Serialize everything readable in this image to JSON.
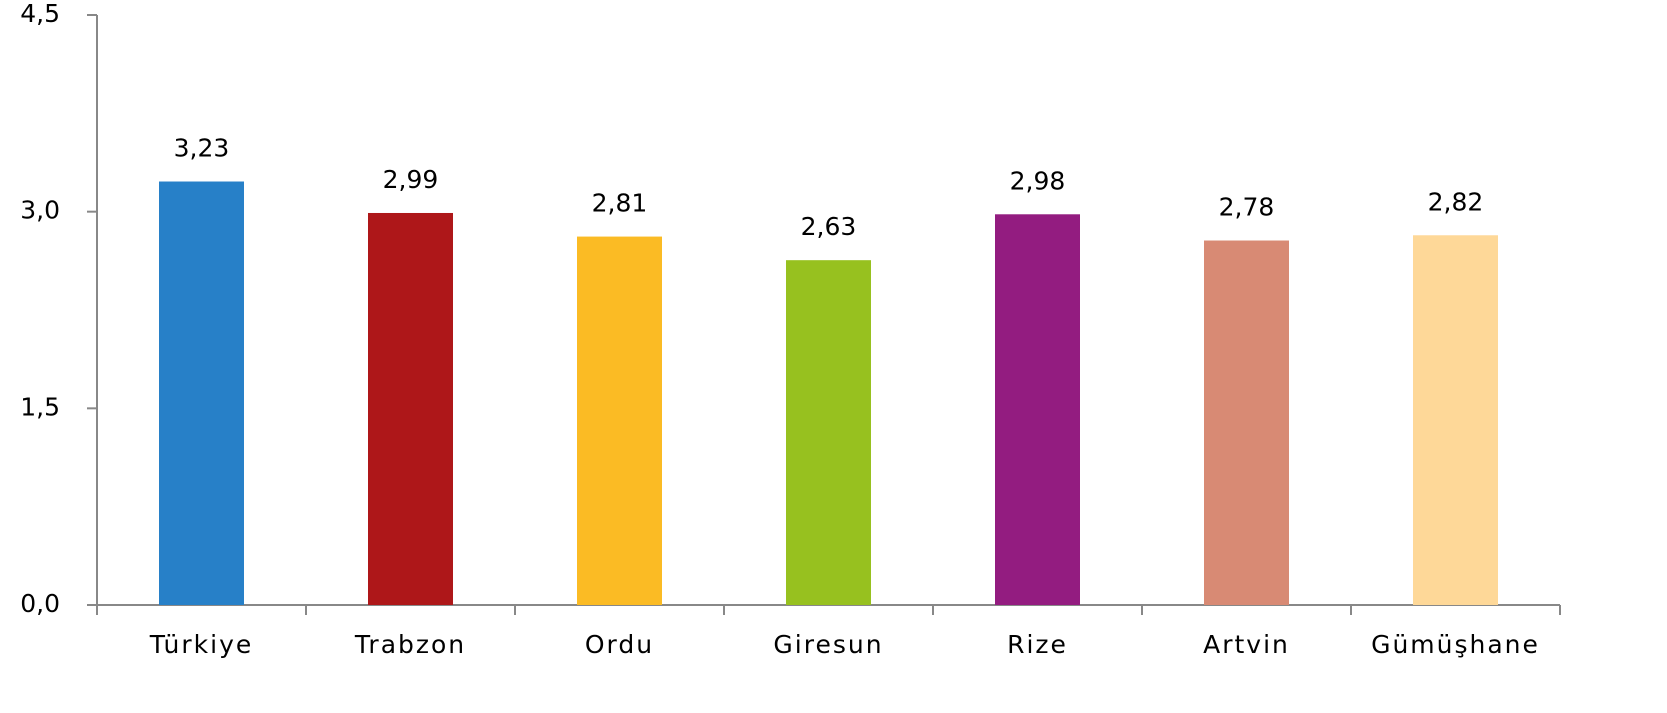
{
  "chart_data": {
    "type": "bar",
    "categories": [
      "Türkiye",
      "Trabzon",
      "Ordu",
      "Giresun",
      "Rize",
      "Artvin",
      "Gümüşhane"
    ],
    "values": [
      3.23,
      2.99,
      2.81,
      2.63,
      2.98,
      2.78,
      2.82
    ],
    "value_labels": [
      "3,23",
      "2,99",
      "2,81",
      "2,63",
      "2,98",
      "2,78",
      "2,82"
    ],
    "colors": [
      "#2780c8",
      "#ae1719",
      "#fbbb24",
      "#97c11f",
      "#931c80",
      "#d88a74",
      "#fed898"
    ],
    "ylim": [
      0,
      4.5
    ],
    "yticks": [
      {
        "value": 0,
        "label": "0,0"
      },
      {
        "value": 1.5,
        "label": "1,5"
      },
      {
        "value": 3,
        "label": "3,0"
      },
      {
        "value": 4.5,
        "label": "4,5"
      }
    ],
    "grid": false
  }
}
